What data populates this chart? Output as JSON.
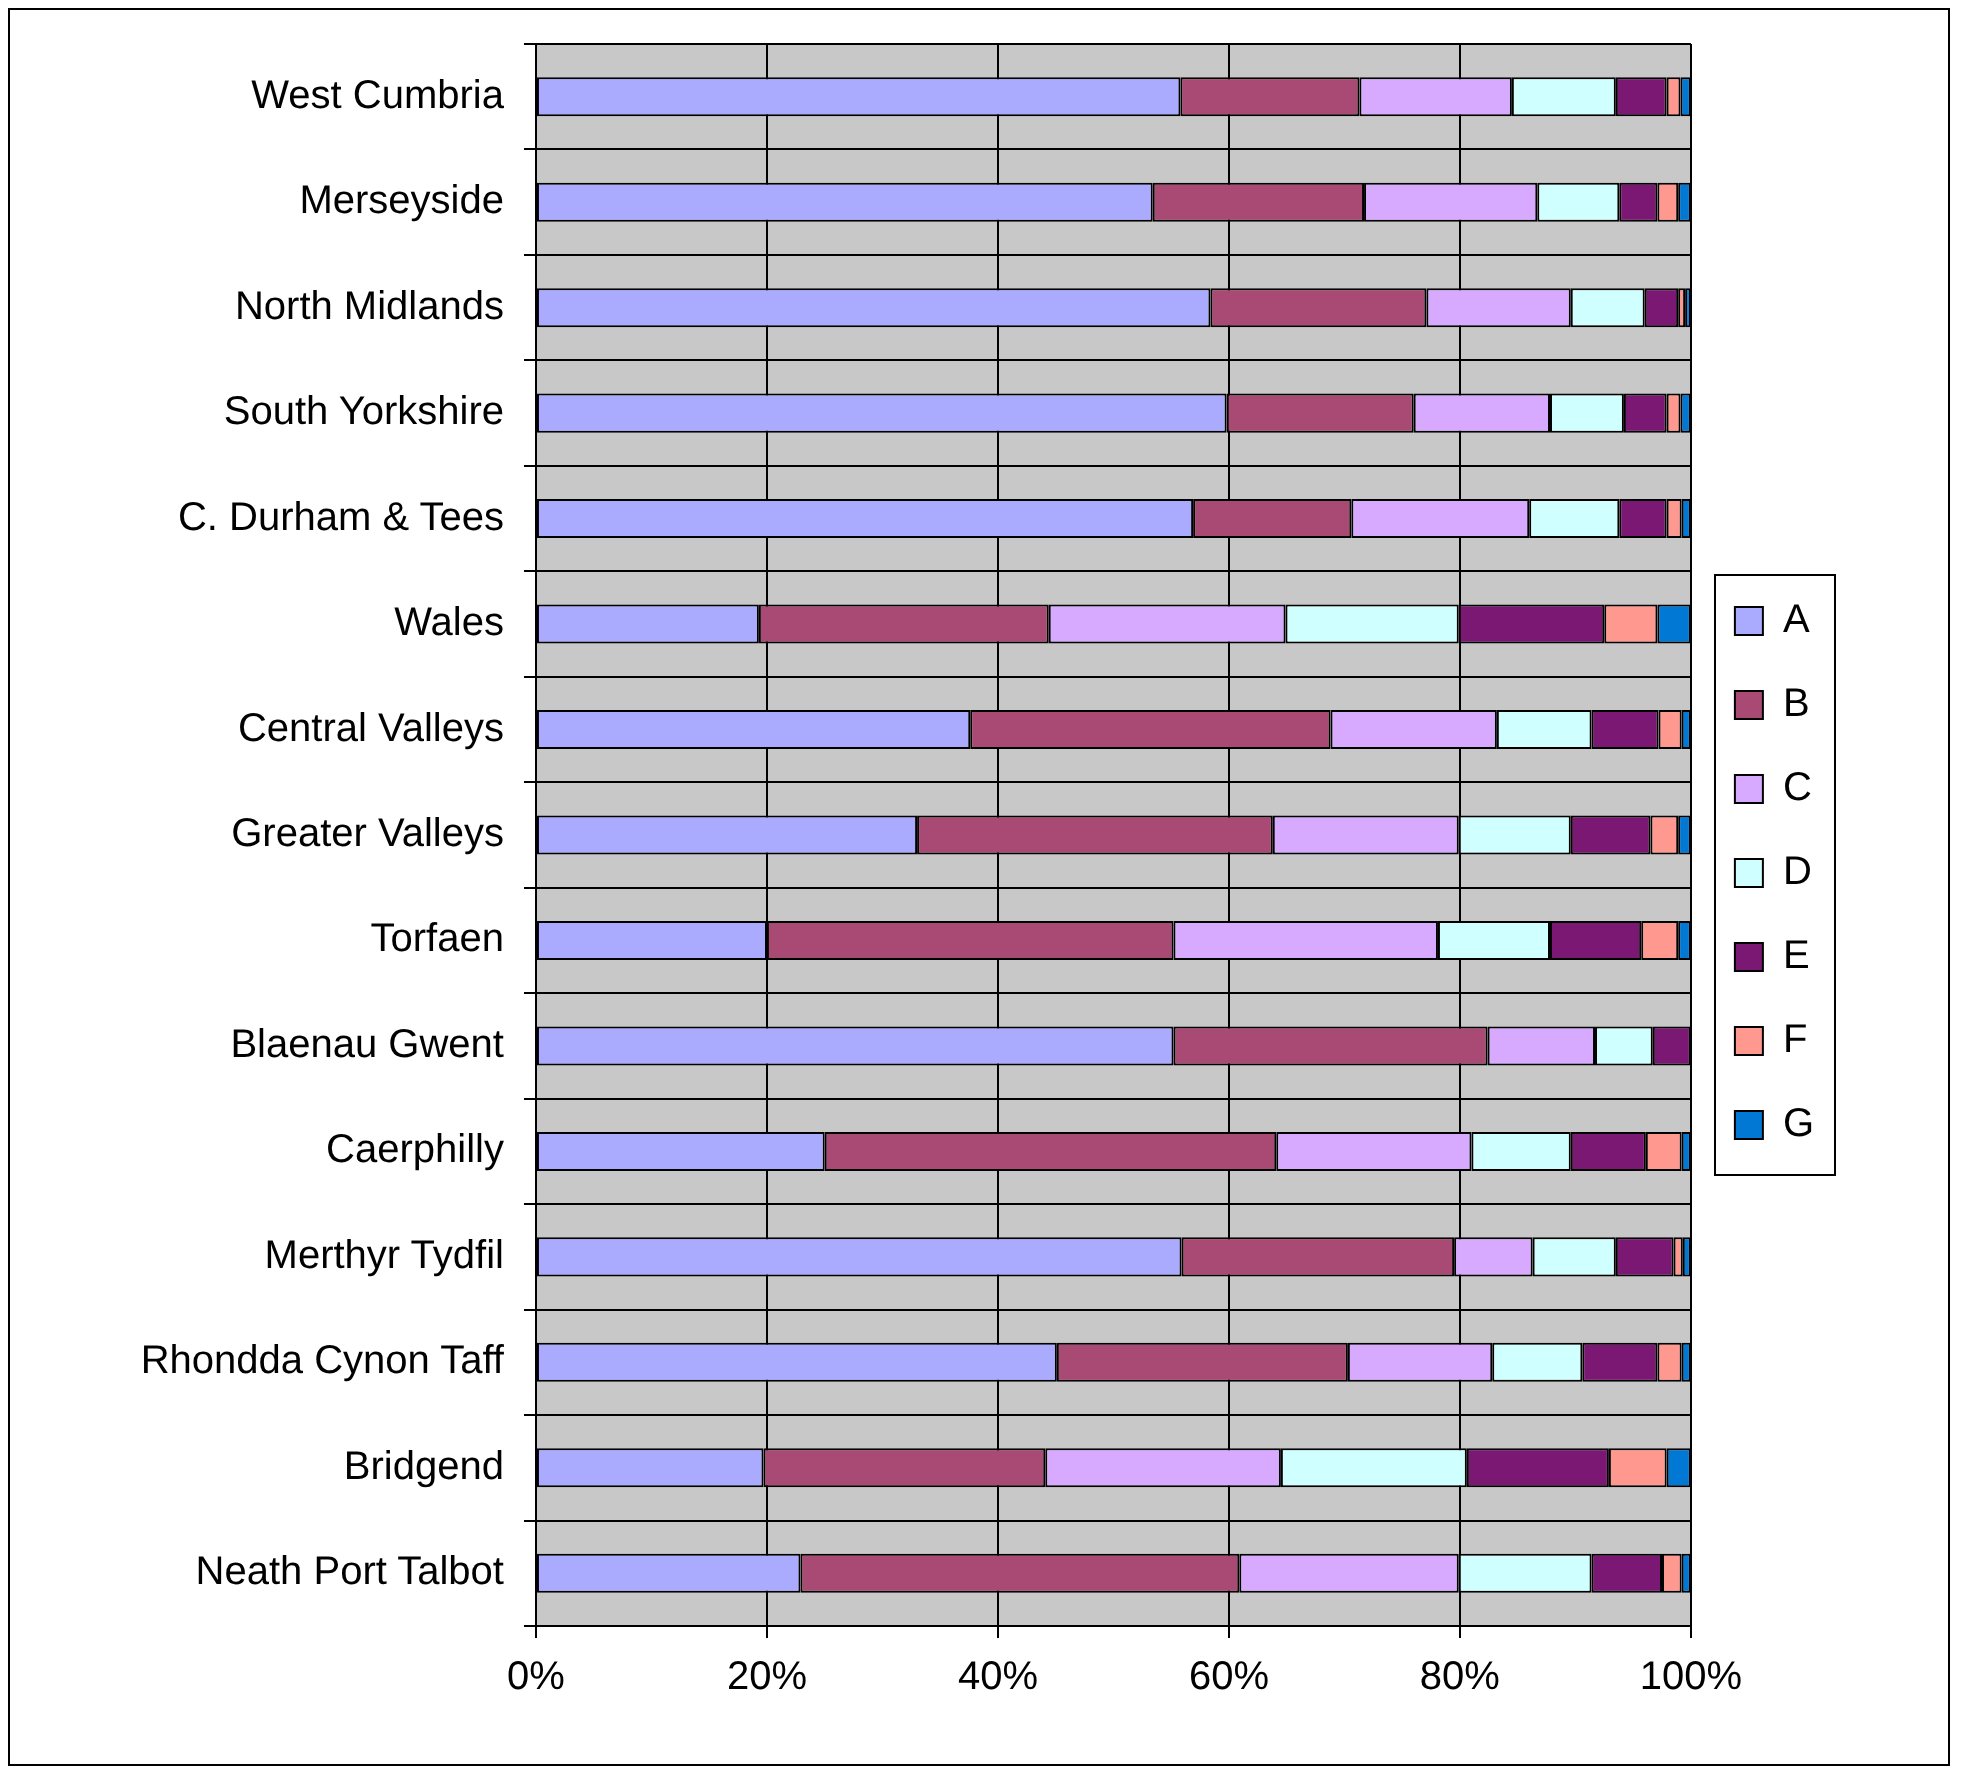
{
  "chart_data": {
    "type": "bar",
    "orientation": "horizontal",
    "stacked": true,
    "categories": [
      "West Cumbria",
      "Merseyside",
      "North Midlands",
      "South Yorkshire",
      "C. Durham & Tees",
      "Wales",
      "Central Valleys",
      "Greater Valleys",
      "Torfaen",
      "Blaenau Gwent",
      "Caerphilly",
      "Merthyr Tydfil",
      "Rhondda Cynon Taff",
      "Bridgend",
      "Neath Port Talbot"
    ],
    "series": [
      {
        "name": "A",
        "color": "#aaaaff",
        "values": [
          55.8,
          53.4,
          58.4,
          59.8,
          56.9,
          19.3,
          37.6,
          33.0,
          20.0,
          55.2,
          25.0,
          55.9,
          45.1,
          19.7,
          22.9
        ]
      },
      {
        "name": "B",
        "color": "#a84a74",
        "values": [
          15.5,
          18.3,
          18.7,
          16.2,
          13.7,
          25.1,
          31.2,
          30.8,
          35.2,
          27.2,
          39.1,
          23.6,
          25.2,
          24.4,
          38.0
        ]
      },
      {
        "name": "C",
        "color": "#d7aaff",
        "values": [
          13.2,
          15.0,
          12.5,
          11.8,
          15.4,
          20.5,
          14.4,
          16.1,
          22.9,
          9.3,
          16.9,
          6.8,
          12.5,
          20.4,
          19.0
        ]
      },
      {
        "name": "D",
        "color": "#d0ffff",
        "values": [
          9.0,
          7.1,
          6.4,
          6.4,
          7.8,
          15.0,
          8.2,
          9.7,
          9.7,
          5.0,
          8.6,
          7.2,
          7.8,
          16.1,
          11.5
        ]
      },
      {
        "name": "E",
        "color": "#7b1874",
        "values": [
          4.4,
          3.3,
          2.9,
          3.7,
          4.1,
          12.6,
          5.8,
          6.9,
          7.9,
          3.3,
          6.5,
          5.0,
          6.5,
          12.3,
          6.1
        ]
      },
      {
        "name": "F",
        "color": "#ff9990",
        "values": [
          1.2,
          1.8,
          0.6,
          1.2,
          1.3,
          4.6,
          2.0,
          2.4,
          3.2,
          null,
          3.1,
          0.8,
          2.1,
          5.0,
          1.7
        ]
      },
      {
        "name": "G",
        "color": "#0078d4",
        "values": [
          0.9,
          1.1,
          0.5,
          0.9,
          0.8,
          2.9,
          0.8,
          1.1,
          1.1,
          null,
          0.8,
          0.7,
          0.8,
          2.1,
          0.8
        ]
      }
    ],
    "xlim": [
      0,
      100
    ],
    "xticks": [
      {
        "value": 0,
        "label": "0%"
      },
      {
        "value": 20,
        "label": "20%"
      },
      {
        "value": 40,
        "label": "40%"
      },
      {
        "value": 60,
        "label": "60%"
      },
      {
        "value": 80,
        "label": "80%"
      },
      {
        "value": 100,
        "label": "100%"
      }
    ],
    "grid": true,
    "legend": "right"
  }
}
